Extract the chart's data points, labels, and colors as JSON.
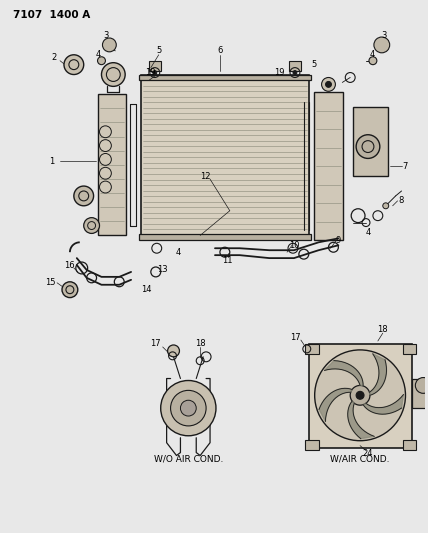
{
  "background_color": "#e8e8e8",
  "line_color": "#1a1a1a",
  "text_color": "#000000",
  "header": "7107  1400 A",
  "wo_air_cond": "W/O AIR COND.",
  "w_air_cond": "W/AIR COND.",
  "fig_width": 4.28,
  "fig_height": 5.33,
  "dpi": 100
}
